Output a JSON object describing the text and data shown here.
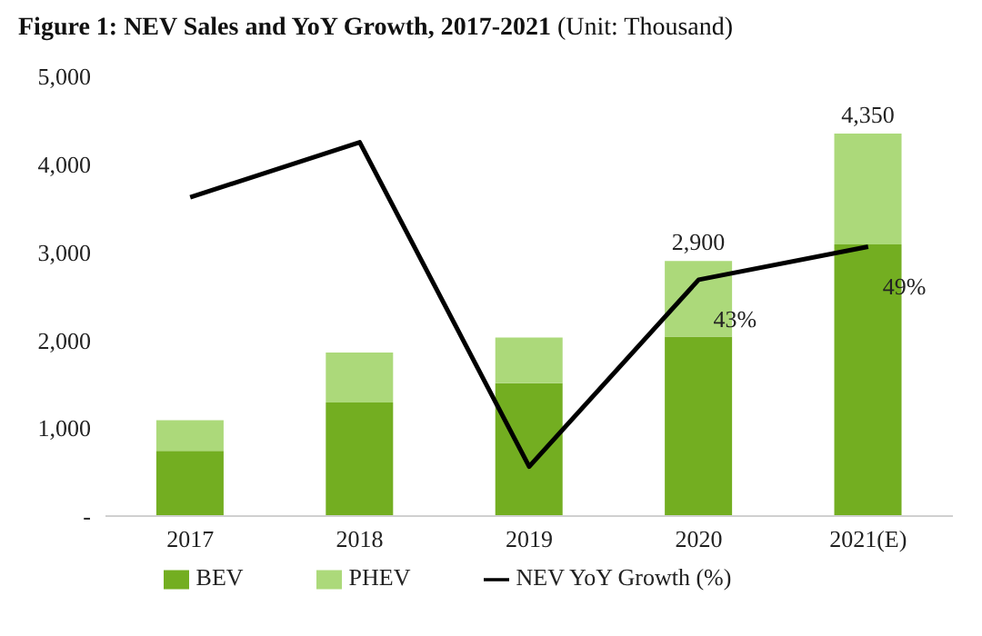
{
  "chart_data": {
    "type": "bar",
    "title": "Figure 1: NEV Sales and YoY Growth, 2017-2021",
    "subtitle": "(Unit: Thousand)",
    "categories": [
      "2017",
      "2018",
      "2019",
      "2020",
      "2021(E)"
    ],
    "stacked": true,
    "series": [
      {
        "name": "BEV",
        "color": "#73ae21",
        "values": [
          740,
          1290,
          1510,
          2040,
          3090
        ]
      },
      {
        "name": "PHEV",
        "color": "#acd97a",
        "values": [
          350,
          570,
          520,
          860,
          1260
        ]
      },
      {
        "name": "NEV YoY Growth (%)",
        "type": "line",
        "axis": "y2",
        "color": "#000000",
        "values": [
          58,
          68,
          9,
          43,
          49
        ],
        "value_labels": [
          null,
          null,
          null,
          "43%",
          "49%"
        ]
      }
    ],
    "totals": [
      null,
      null,
      null,
      "2,900",
      "4,350"
    ],
    "ylim": [
      0,
      5000
    ],
    "yticks": [
      {
        "value": 0,
        "label": "-"
      },
      {
        "value": 1000,
        "label": "1,000"
      },
      {
        "value": 2000,
        "label": "2,000"
      },
      {
        "value": 3000,
        "label": "3,000"
      },
      {
        "value": 4000,
        "label": "4,000"
      },
      {
        "value": 5000,
        "label": "5,000"
      }
    ],
    "grid": false,
    "legend": "bottom",
    "marker": "none",
    "line_style": "solid"
  }
}
